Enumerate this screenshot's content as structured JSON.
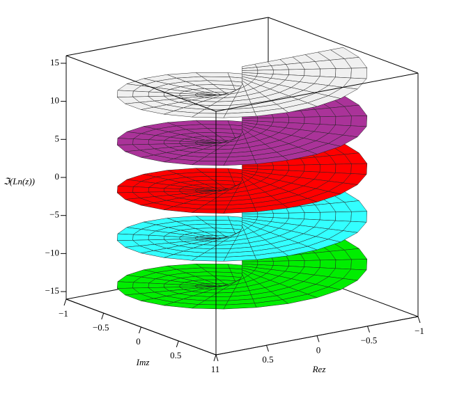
{
  "chart_data": {
    "type": "surface3d",
    "x_label": "Rez",
    "y_label": "Imz",
    "z_label": "ℑ(Ln(z))",
    "xlim": [
      -1,
      1
    ],
    "xticks": [
      {
        "value": -1,
        "label": "−1"
      },
      {
        "value": -0.5,
        "label": "−0.5"
      },
      0,
      0.5,
      1
    ],
    "ylim": [
      -1,
      1
    ],
    "yticks": [
      {
        "value": -1,
        "label": "−1"
      },
      {
        "value": -0.5,
        "label": "−0.5"
      },
      0,
      0.5,
      1
    ],
    "zlim": [
      -16,
      16
    ],
    "zticks": [
      {
        "value": -15,
        "label": "−15"
      },
      {
        "value": -10,
        "label": "−10"
      },
      {
        "value": -5,
        "label": "−5"
      },
      0,
      5,
      10,
      15
    ],
    "sheet_colors": [
      "#00ee00",
      "#33ffff",
      "#ff0000",
      "#aa3399",
      "#f0f0f0"
    ],
    "grid": true
  }
}
